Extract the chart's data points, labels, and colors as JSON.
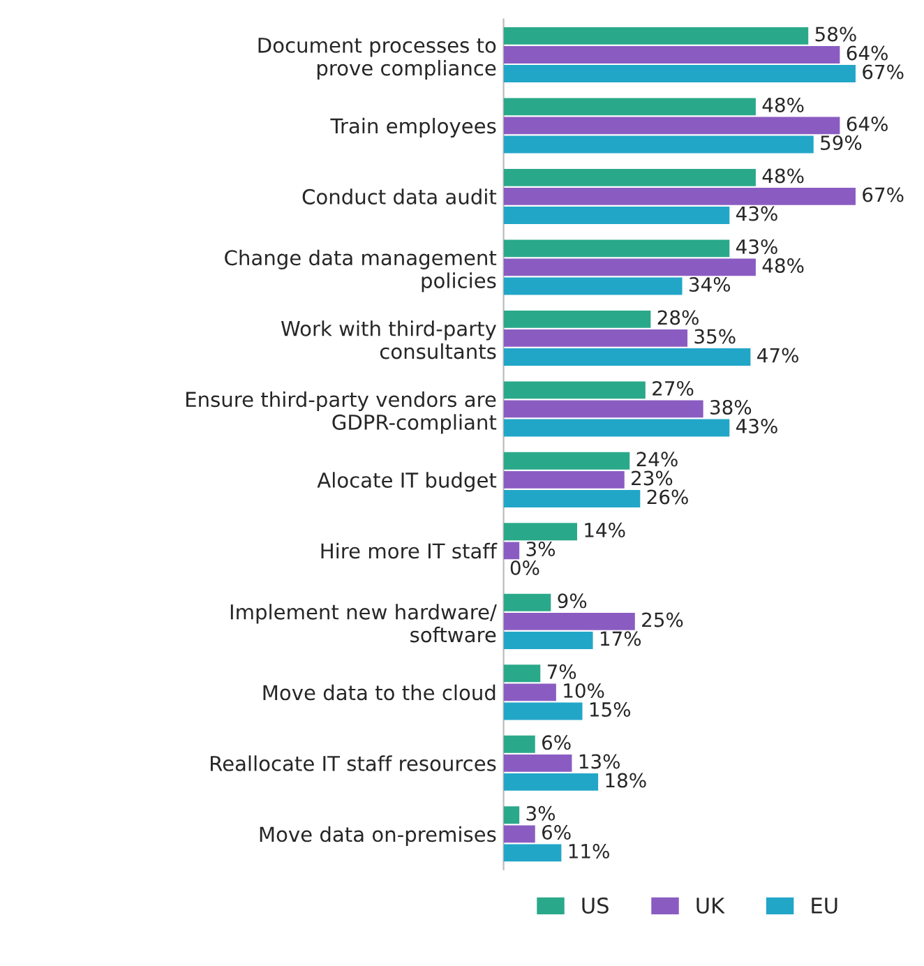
{
  "chart_data": {
    "type": "bar",
    "orientation": "horizontal",
    "categories": [
      "Document processes to\nprove compliance",
      "Train employees",
      "Conduct data audit",
      "Change data management\npolicies",
      "Work with third-party\nconsultants",
      "Ensure third-party vendors are\nGDPR-compliant",
      "Alocate IT budget",
      "Hire more IT staff",
      "Implement new hardware/\nsoftware",
      "Move data to the cloud",
      "Reallocate IT staff resources",
      "Move data on-premises"
    ],
    "series": [
      {
        "name": "US",
        "color": "#2aa98a",
        "values": [
          58,
          48,
          48,
          43,
          28,
          27,
          24,
          14,
          9,
          7,
          6,
          3
        ],
        "value_labels": [
          "58%",
          "48%",
          "48%",
          "43%",
          "28%",
          "27%",
          "24%",
          "14%",
          "9%",
          "7%",
          "6%",
          "3%"
        ]
      },
      {
        "name": "UK",
        "color": "#8a5cc2",
        "values": [
          64,
          64,
          67,
          48,
          35,
          38,
          23,
          3,
          25,
          10,
          13,
          6
        ],
        "value_labels": [
          "64%",
          "64%",
          "67%",
          "48%",
          "35%",
          "38%",
          "23%",
          "3%",
          "25%",
          "10%",
          "13%",
          "6%"
        ]
      },
      {
        "name": "EU",
        "color": "#22a6c8",
        "values": [
          67,
          59,
          43,
          34,
          47,
          43,
          26,
          0,
          17,
          15,
          18,
          11
        ],
        "value_labels": [
          "67%",
          "59%",
          "43%",
          "34%",
          "47%",
          "43%",
          "26%",
          "0%",
          "17%",
          "15%",
          "18%",
          "11%"
        ]
      }
    ],
    "legend": "bottom",
    "tick_labels": "y"
  }
}
